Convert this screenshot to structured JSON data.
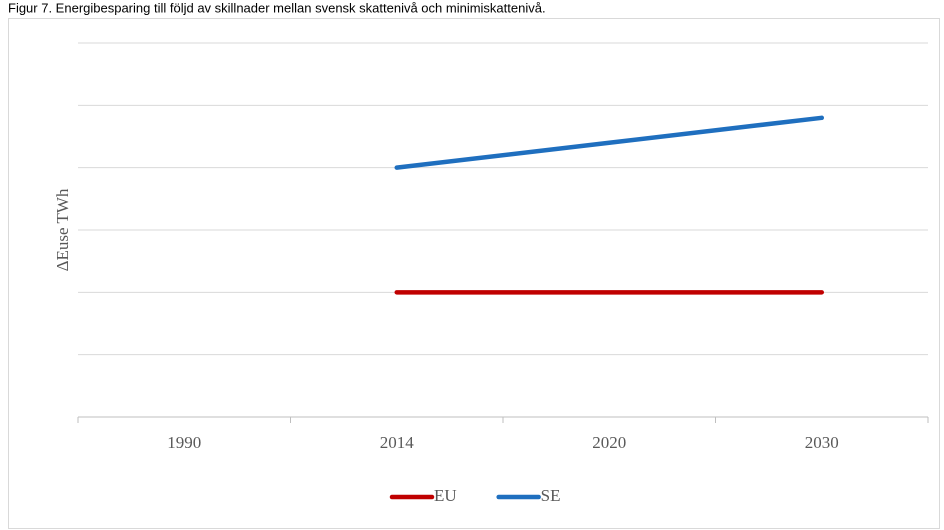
{
  "chart_data": {
    "type": "line",
    "title": "Figur 7. Energibesparing till följd av skillnader mellan svensk skattenivå och minimiskattenivå.",
    "ylabel": "ΔEuse TWh",
    "categories": [
      "1990",
      "2014",
      "2020",
      "2030"
    ],
    "series": [
      {
        "name": "EU",
        "color": "#c00000",
        "values": [
          null,
          2,
          2,
          2
        ]
      },
      {
        "name": "SE",
        "color": "#1f6fbf",
        "values": [
          null,
          4,
          4.4,
          4.8
        ]
      }
    ],
    "ylim": [
      0,
      6
    ],
    "yticks": [
      0,
      1,
      2,
      3,
      4,
      5,
      6
    ],
    "ytick_labels": false,
    "grid": true,
    "legend": "bottom"
  }
}
